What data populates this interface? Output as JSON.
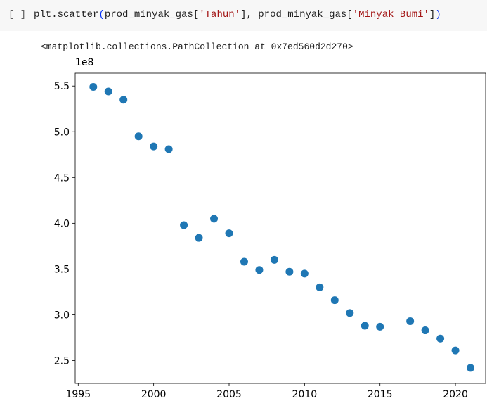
{
  "cell": {
    "prompt": "[ ]",
    "code": [
      {
        "text": "plt.scatter",
        "color": "#212121"
      },
      {
        "text": "(",
        "color": "#0431fa"
      },
      {
        "text": "prod_minyak_gas[",
        "color": "#212121"
      },
      {
        "text": "'Tahun'",
        "color": "#a31515"
      },
      {
        "text": "], prod_minyak_gas[",
        "color": "#212121"
      },
      {
        "text": "'Minyak Bumi'",
        "color": "#a31515"
      },
      {
        "text": "]",
        "color": "#212121"
      },
      {
        "text": ")",
        "color": "#0431fa"
      }
    ],
    "output": "<matplotlib.collections.PathCollection at 0x7ed560d2d270>"
  },
  "chart_data": {
    "type": "scatter",
    "color": "#1f77b4",
    "y_offset_label": "1e8",
    "x": [
      1996,
      1997,
      1998,
      1999,
      2000,
      2001,
      2002,
      2003,
      2004,
      2005,
      2006,
      2007,
      2008,
      2009,
      2010,
      2011,
      2012,
      2013,
      2014,
      2015,
      2017,
      2018,
      2019,
      2020,
      2021
    ],
    "values": [
      5.49,
      5.44,
      5.35,
      4.95,
      4.84,
      4.81,
      3.98,
      3.84,
      4.05,
      3.89,
      3.58,
      3.49,
      3.6,
      3.47,
      3.45,
      3.3,
      3.16,
      3.02,
      2.88,
      2.87,
      2.93,
      2.83,
      2.74,
      2.61,
      2.42
    ],
    "xlim": [
      1994.8,
      2022.0
    ],
    "ylim": [
      2.25,
      5.64
    ],
    "xticks": [
      1995,
      2000,
      2005,
      2010,
      2015,
      2020
    ],
    "yticks": [
      2.5,
      {
        "value": 3,
        "label": "3.0"
      },
      3.5,
      {
        "value": 4,
        "label": "4.0"
      },
      4.5,
      {
        "value": 5,
        "label": "5.0"
      },
      5.5
    ]
  }
}
